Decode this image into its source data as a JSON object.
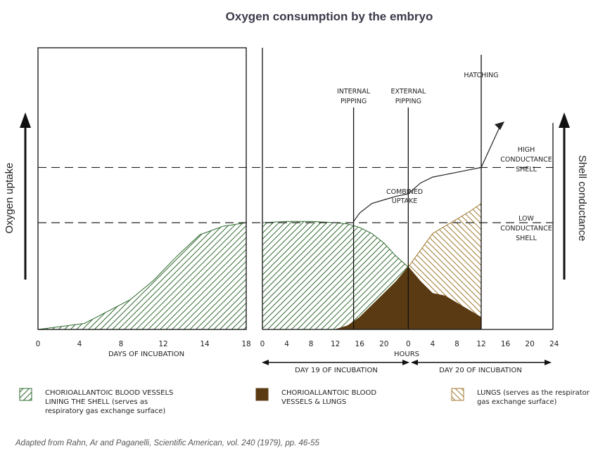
{
  "chart_data": {
    "type": "area",
    "title": "Oxygen consumption by the embryo",
    "ylabel_left": "Oxygen uptake",
    "ylabel_right": "Shell conductance",
    "panel_days": {
      "xlabel": "DAYS OF INCUBATION",
      "xlim": [
        0,
        18
      ],
      "ticks": [
        "0",
        "4",
        "8",
        "12",
        "14",
        "18"
      ],
      "series": [
        {
          "name": "CHORIOALLANTOIC BLOOD VESSELS LINING THE SHELL",
          "x": [
            0,
            4,
            8,
            10,
            12,
            14,
            16,
            18
          ],
          "y": [
            0.0,
            0.05,
            0.25,
            0.41,
            0.61,
            0.79,
            0.86,
            0.89
          ]
        }
      ]
    },
    "panel_hours": {
      "xlabel": "HOURS",
      "ticks": [
        "0",
        "4",
        "8",
        "12",
        "16",
        "20",
        "0",
        "4",
        "8",
        "12",
        "16",
        "20",
        "24"
      ],
      "day19_label": "DAY 19 OF INCUBATION",
      "day20_label": "DAY 20 OF INCUBATION",
      "series": [
        {
          "name": "CHORIOALLANTOIC BLOOD VESSELS LINING THE SHELL",
          "x": [
            0,
            4,
            8,
            12,
            14,
            16,
            18,
            20,
            22,
            24
          ],
          "y": [
            0.89,
            0.9,
            0.9,
            0.89,
            0.88,
            0.85,
            0.8,
            0.72,
            0.61,
            0.52
          ]
        },
        {
          "name": "CHORIOALLANTOIC BLOOD VESSELS & LUNGS",
          "x": [
            12,
            14,
            16,
            18,
            20,
            22,
            24,
            26,
            28,
            30,
            32,
            36
          ],
          "y": [
            0.0,
            0.03,
            0.1,
            0.2,
            0.3,
            0.4,
            0.52,
            0.4,
            0.3,
            0.28,
            0.22,
            0.1
          ]
        },
        {
          "name": "LUNGS",
          "x": [
            24,
            26,
            28,
            30,
            32,
            34,
            36
          ],
          "y": [
            0.52,
            0.66,
            0.8,
            0.86,
            0.92,
            0.98,
            1.05
          ]
        },
        {
          "name": "COMBINED UPTAKE",
          "x": [
            15,
            16,
            18,
            20,
            22,
            24,
            26,
            28,
            30,
            32,
            34,
            36
          ],
          "y": [
            0.9,
            0.97,
            1.05,
            1.08,
            1.11,
            1.13,
            1.22,
            1.27,
            1.29,
            1.31,
            1.33,
            1.35
          ]
        }
      ],
      "events": [
        {
          "x": 15,
          "label": [
            "INTERNAL",
            "PIPPING"
          ]
        },
        {
          "x": 24,
          "label": [
            "EXTERNAL",
            "PIPPING"
          ]
        },
        {
          "x": 36,
          "label": [
            "HATCHING"
          ]
        }
      ]
    },
    "reference_levels": [
      {
        "y": 0.89,
        "label": [
          "LOW",
          "CONDUCTANCE",
          "SHELL"
        ]
      },
      {
        "y": 1.35,
        "label": [
          "HIGH",
          "CONDUCTANCE",
          "SHELL"
        ]
      }
    ],
    "combined_label": [
      "COMBINED",
      "UPTAKE"
    ],
    "legend": [
      {
        "pattern": "green-hatch",
        "text": [
          "CHORIOALLANTOIC BLOOD VESSELS",
          "LINING THE SHELL (serves as",
          "respiratory gas exchange surface)"
        ]
      },
      {
        "pattern": "brown-solid",
        "text": [
          "CHORIOALLANTOIC BLOOD",
          "VESSELS & LUNGS"
        ]
      },
      {
        "pattern": "tan-hatch",
        "text": [
          "LUNGS (serves as the respirator",
          "gas exchange surface)"
        ]
      }
    ],
    "colors": {
      "green": "#2f6b2f",
      "brown": "#5a3a12",
      "tan": "#a07830"
    }
  },
  "source": "Adapted from Rahn, Ar and Paganelli, Scientific American, vol. 240 (1979), pp. 46-55"
}
